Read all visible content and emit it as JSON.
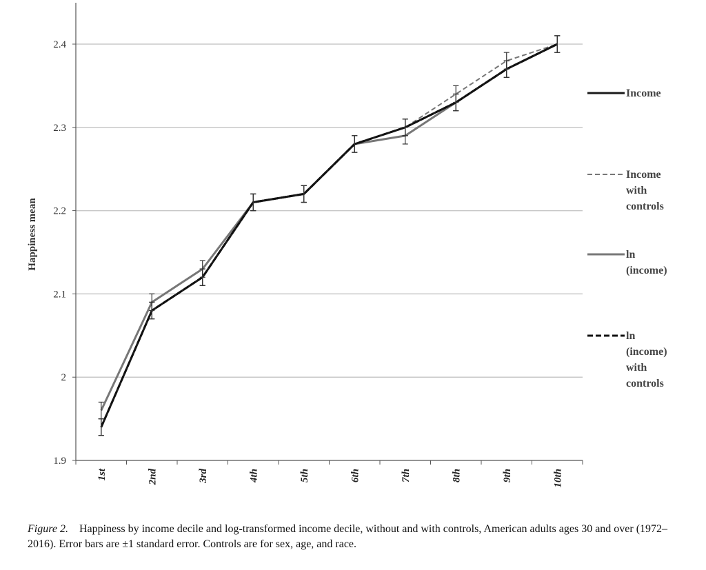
{
  "chart_data": {
    "type": "line",
    "categories": [
      "1st",
      "2nd",
      "3rd",
      "4th",
      "5th",
      "6th",
      "7th",
      "8th",
      "9th",
      "10th"
    ],
    "ylabel": "Happiness mean",
    "ylim": [
      1.9,
      2.4
    ],
    "yticks": [
      "1.9",
      "2",
      "2.1",
      "2.2",
      "2.3",
      "2.4"
    ],
    "grid": true,
    "legend_position": "right",
    "error_bar": 0.01,
    "series": [
      {
        "name": "Income",
        "color": "#1a1a1a",
        "dash": "solid",
        "values": [
          1.94,
          2.08,
          2.12,
          2.21,
          2.22,
          2.28,
          2.3,
          2.33,
          2.37,
          2.4
        ]
      },
      {
        "name": "Income with controls",
        "color": "#777777",
        "dash": "dashed",
        "values": [
          1.94,
          2.08,
          2.12,
          2.21,
          2.22,
          2.28,
          2.3,
          2.34,
          2.38,
          2.4
        ]
      },
      {
        "name": "ln (income)",
        "color": "#777777",
        "dash": "solid",
        "values": [
          1.96,
          2.09,
          2.13,
          2.21,
          2.22,
          2.28,
          2.29,
          2.33,
          2.37,
          2.4
        ]
      },
      {
        "name": "ln (income) with controls",
        "color": "#111111",
        "dash": "dashed-bold",
        "values": [
          1.94,
          2.08,
          2.12,
          2.21,
          2.22,
          2.28,
          2.3,
          2.33,
          2.37,
          2.4
        ]
      }
    ],
    "legend_lines": [
      [
        "Income"
      ],
      [
        "Income",
        "with",
        "controls"
      ],
      [
        "ln",
        "(income)"
      ],
      [
        "ln",
        "(income)",
        "with",
        "controls"
      ]
    ]
  },
  "caption": {
    "label": "Figure 2.",
    "text": "Happiness by income decile and log-transformed income decile, without and with controls, American adults ages 30 and over (1972–2016). Error bars are ±1 standard error. Controls are for sex, age, and race."
  }
}
